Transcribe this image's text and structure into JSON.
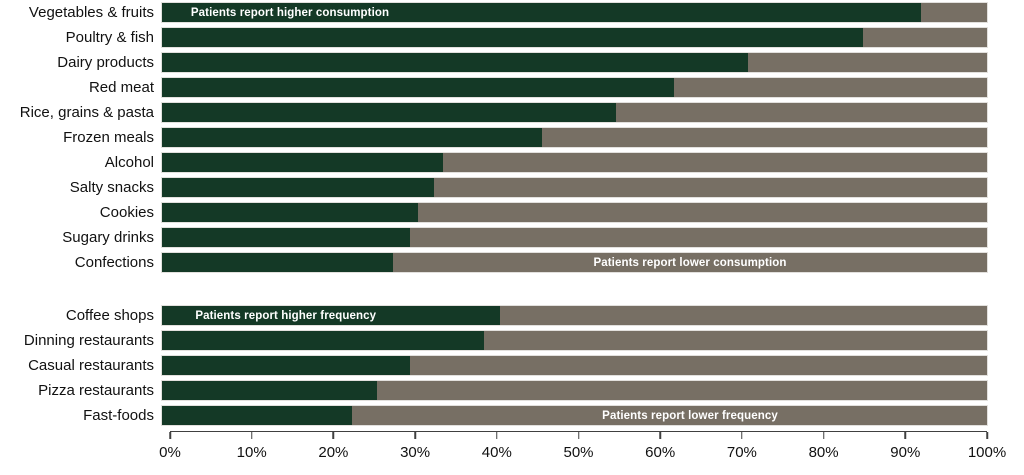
{
  "chart_data": {
    "type": "bar",
    "orientation": "horizontal",
    "stacked": true,
    "unit": "%",
    "xlim": [
      0,
      100
    ],
    "x_ticks": [
      "0%",
      "10%",
      "20%",
      "30%",
      "40%",
      "50%",
      "60%",
      "70%",
      "80%",
      "90%",
      "100%"
    ],
    "grid": false,
    "legend": "none",
    "colors": {
      "higher_segment": "#143926",
      "lower_segment": "#776F64"
    },
    "groups": [
      {
        "name": "food-consumption",
        "categories": [
          "Vegetables & fruits",
          "Poultry & fish",
          "Dairy products",
          "Red meat",
          "Rice, grains & pasta",
          "Frozen meals",
          "Alcohol",
          "Salty snacks",
          "Cookies",
          "Sugary drinks",
          "Confections"
        ],
        "series": [
          {
            "name": "Patients report higher consumption",
            "values": [
              92,
              85,
              71,
              62,
              55,
              46,
              34,
              33,
              31,
              30,
              28
            ]
          },
          {
            "name": "Patients report lower consumption",
            "values": [
              8,
              15,
              29,
              38,
              45,
              54,
              66,
              67,
              69,
              70,
              72
            ]
          }
        ],
        "annotations": [
          {
            "text": "Patients report higher consumption",
            "row": 0,
            "segment": "higher",
            "left_pct": 3.5,
            "width_pct": 24
          },
          {
            "text": "Patients report lower consumption",
            "row": 10,
            "segment": "lower",
            "left_pct": 52,
            "width_pct": 24
          }
        ]
      },
      {
        "name": "eating-out-frequency",
        "categories": [
          "Coffee shops",
          "Dinning restaurants",
          "Casual restaurants",
          "Pizza restaurants",
          "Fast-foods"
        ],
        "series": [
          {
            "name": "Patients report higher frequency",
            "values": [
              41,
              39,
              30,
              26,
              23
            ]
          },
          {
            "name": "Patients report lower frequency",
            "values": [
              59,
              61,
              70,
              74,
              77
            ]
          }
        ],
        "annotations": [
          {
            "text": "Patients report higher frequency",
            "row": 0,
            "segment": "higher",
            "left_pct": 4,
            "width_pct": 22
          },
          {
            "text": "Patients report lower frequency",
            "row": 4,
            "segment": "lower",
            "left_pct": 53,
            "width_pct": 22
          }
        ]
      }
    ]
  }
}
